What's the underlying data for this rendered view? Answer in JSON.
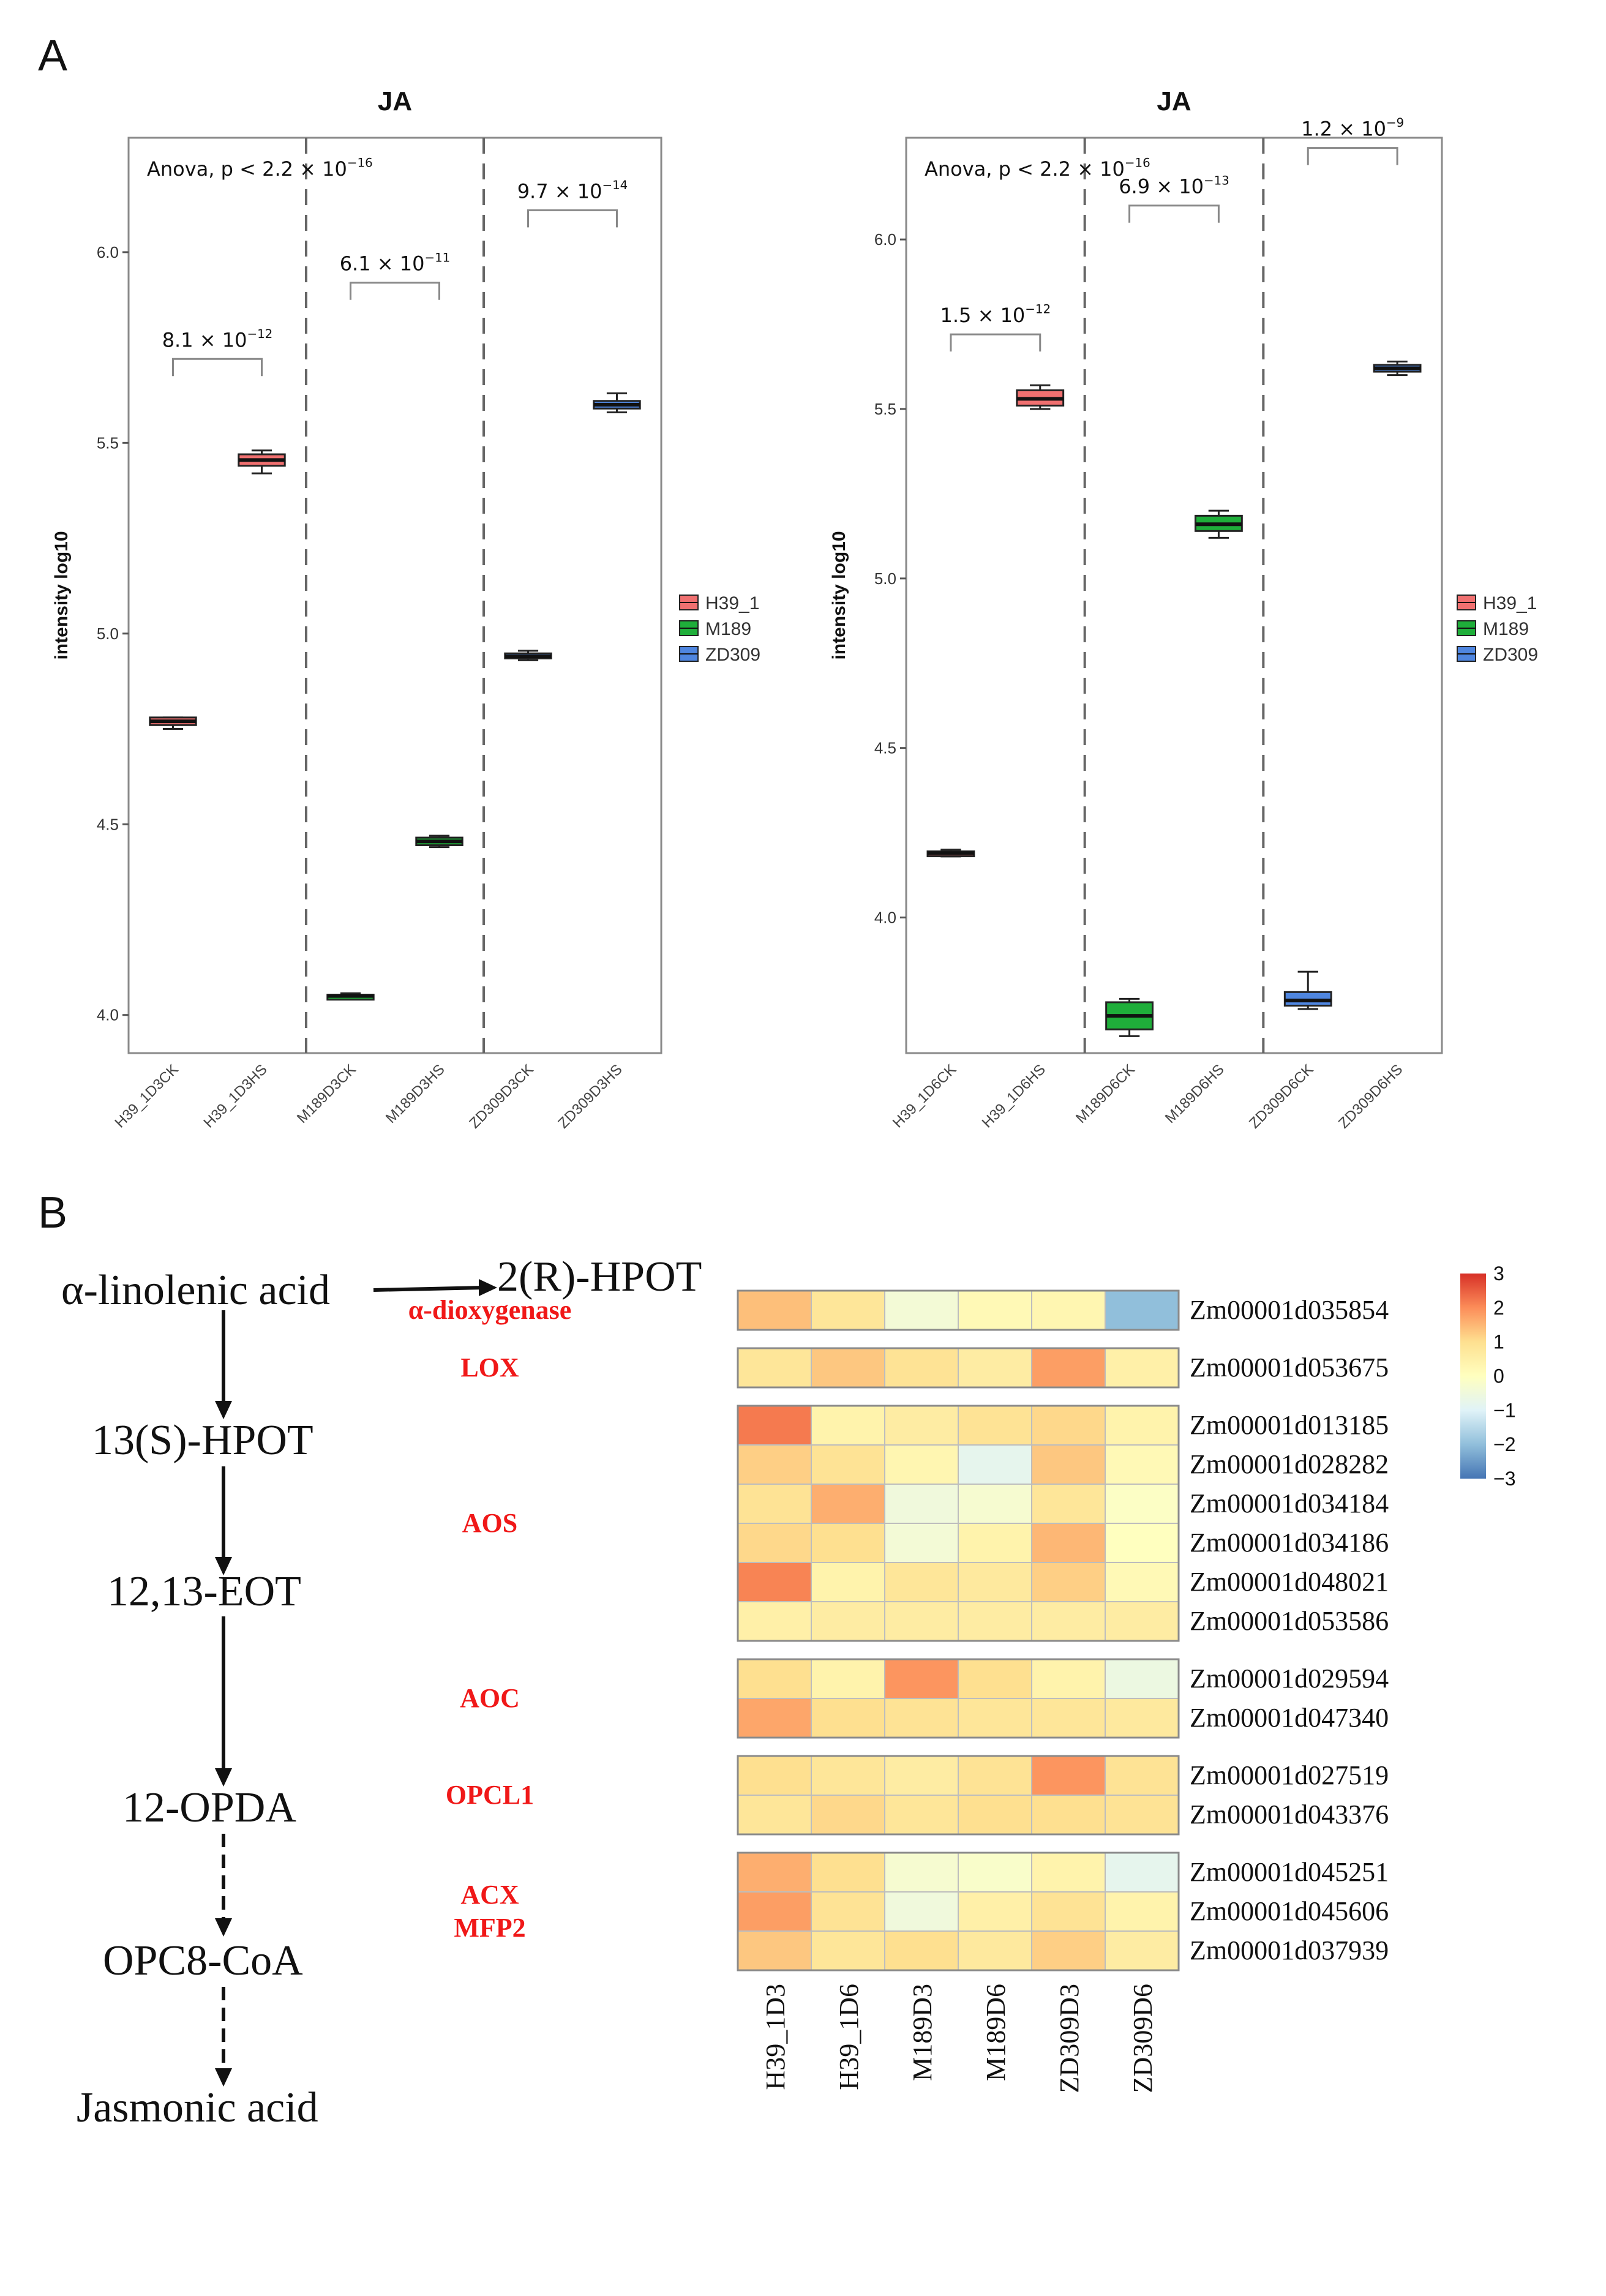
{
  "panels": {
    "a": "A",
    "b": "B"
  },
  "chart_data": [
    {
      "type": "box",
      "title": "JA",
      "ylabel": "intensity log10",
      "ylim": [
        3.9,
        6.3
      ],
      "yticks": [
        4.0,
        4.5,
        5.0,
        5.5,
        6.0
      ],
      "ytick_labels": [
        "4.0",
        "4.5",
        "5.0",
        "5.5",
        "6.0"
      ],
      "anova": {
        "lead": "Anova, p < 2.2 × 10",
        "exp": "−16"
      },
      "categories": [
        "H39_1D3CK",
        "H39_1D3HS",
        "M189D3CK",
        "M189D3HS",
        "ZD309D3CK",
        "ZD309D3HS"
      ],
      "groups": [
        "H39_1",
        "H39_1",
        "M189",
        "M189",
        "ZD309",
        "ZD309"
      ],
      "boxes": [
        {
          "min": 4.75,
          "q1": 4.76,
          "median": 4.77,
          "q3": 4.78,
          "max": 4.78
        },
        {
          "min": 5.42,
          "q1": 5.44,
          "median": 5.455,
          "q3": 5.47,
          "max": 5.48
        },
        {
          "min": 4.045,
          "q1": 4.047,
          "median": 4.05,
          "q3": 4.053,
          "max": 4.057
        },
        {
          "min": 4.44,
          "q1": 4.445,
          "median": 4.455,
          "q3": 4.465,
          "max": 4.47
        },
        {
          "min": 4.93,
          "q1": 4.935,
          "median": 4.94,
          "q3": 4.948,
          "max": 4.955
        },
        {
          "min": 5.58,
          "q1": 5.59,
          "median": 5.6,
          "q3": 5.61,
          "max": 5.63
        }
      ],
      "comparisons": [
        {
          "left": 0,
          "right": 1,
          "y": 5.72,
          "lead": "8.1 × 10",
          "exp": "−12"
        },
        {
          "left": 2,
          "right": 3,
          "y": 5.92,
          "lead": "6.1 × 10",
          "exp": "−11"
        },
        {
          "left": 4,
          "right": 5,
          "y": 6.11,
          "lead": "9.7 × 10",
          "exp": "−14"
        }
      ],
      "separators_after": [
        1,
        3
      ],
      "legend": [
        "H39_1",
        "M189",
        "ZD309"
      ]
    },
    {
      "type": "box",
      "title": "JA",
      "ylabel": "intensity log10",
      "ylim": [
        3.6,
        6.3
      ],
      "yticks": [
        4.0,
        4.5,
        5.0,
        5.5,
        6.0
      ],
      "ytick_labels": [
        "4.0",
        "4.5",
        "5.0",
        "5.5",
        "6.0"
      ],
      "anova": {
        "lead": "Anova, p < 2.2 × 10",
        "exp": "−16"
      },
      "categories": [
        "H39_1D6CK",
        "H39_1D6HS",
        "M189D6CK",
        "M189D6HS",
        "ZD309D6CK",
        "ZD309D6HS"
      ],
      "groups": [
        "H39_1",
        "H39_1",
        "M189",
        "M189",
        "ZD309",
        "ZD309"
      ],
      "boxes": [
        {
          "min": 4.18,
          "q1": 4.185,
          "median": 4.19,
          "q3": 4.195,
          "max": 4.2
        },
        {
          "min": 5.5,
          "q1": 5.51,
          "median": 5.53,
          "q3": 5.555,
          "max": 5.57
        },
        {
          "min": 3.65,
          "q1": 3.67,
          "median": 3.71,
          "q3": 3.75,
          "max": 3.76
        },
        {
          "min": 5.12,
          "q1": 5.14,
          "median": 5.16,
          "q3": 5.185,
          "max": 5.2
        },
        {
          "min": 3.73,
          "q1": 3.74,
          "median": 3.755,
          "q3": 3.78,
          "max": 3.84
        },
        {
          "min": 5.6,
          "q1": 5.61,
          "median": 5.62,
          "q3": 5.63,
          "max": 5.64
        }
      ],
      "comparisons": [
        {
          "left": 0,
          "right": 1,
          "y": 5.72,
          "lead": "1.5 × 10",
          "exp": "−12"
        },
        {
          "left": 2,
          "right": 3,
          "y": 6.1,
          "lead": "6.9 × 10",
          "exp": "−13"
        },
        {
          "left": 4,
          "right": 5,
          "y": 6.27,
          "lead": "1.2 × 10",
          "exp": "−9"
        }
      ],
      "separators_after": [
        1,
        3
      ],
      "legend": [
        "H39_1",
        "M189",
        "ZD309"
      ]
    },
    {
      "type": "heatmap",
      "columns": [
        "H39_1D3",
        "H39_1D6",
        "M189D3",
        "M189D6",
        "ZD309D3",
        "ZD309D6"
      ],
      "blocks": [
        {
          "enzyme": [
            "α-dioxygenase"
          ],
          "rows": [
            {
              "gene": "Zm00001d035854",
              "values": [
                1.4,
                0.8,
                -0.4,
                0.2,
                0.3,
                -2.0
              ]
            }
          ]
        },
        {
          "enzyme": [
            "LOX"
          ],
          "rows": [
            {
              "gene": "Zm00001d053675",
              "values": [
                0.8,
                1.3,
                0.9,
                0.6,
                1.8,
                0.5
              ]
            }
          ]
        },
        {
          "enzyme": [
            "AOS"
          ],
          "rows": [
            {
              "gene": "Zm00001d013185",
              "values": [
                2.2,
                0.4,
                0.6,
                0.9,
                1.1,
                0.4
              ]
            },
            {
              "gene": "Zm00001d028282",
              "values": [
                1.2,
                0.9,
                0.3,
                -0.8,
                1.3,
                0.2
              ]
            },
            {
              "gene": "Zm00001d034184",
              "values": [
                0.9,
                1.6,
                -0.5,
                -0.3,
                0.8,
                -0.1
              ]
            },
            {
              "gene": "Zm00001d034186",
              "values": [
                1.1,
                1.0,
                -0.4,
                0.4,
                1.5,
                0.0
              ]
            },
            {
              "gene": "Zm00001d048021",
              "values": [
                2.1,
                0.4,
                0.8,
                0.7,
                1.2,
                0.2
              ]
            },
            {
              "gene": "Zm00001d053586",
              "values": [
                0.5,
                0.6,
                0.6,
                0.6,
                0.6,
                0.6
              ]
            }
          ]
        },
        {
          "enzyme": [
            "AOC"
          ],
          "rows": [
            {
              "gene": "Zm00001d029594",
              "values": [
                1.0,
                0.4,
                1.9,
                1.0,
                0.4,
                -0.6
              ]
            },
            {
              "gene": "Zm00001d047340",
              "values": [
                1.7,
                1.0,
                0.9,
                0.8,
                0.8,
                0.7
              ]
            }
          ]
        },
        {
          "enzyme": [
            "OPCL1"
          ],
          "rows": [
            {
              "gene": "Zm00001d027519",
              "values": [
                1.0,
                0.8,
                0.6,
                0.9,
                1.9,
                0.9
              ]
            },
            {
              "gene": "Zm00001d043376",
              "values": [
                0.8,
                1.1,
                0.8,
                1.0,
                1.0,
                0.9
              ]
            }
          ]
        },
        {
          "enzyme": [
            "ACX",
            "MFP2"
          ],
          "rows": [
            {
              "gene": "Zm00001d045251",
              "values": [
                1.6,
                1.0,
                -0.3,
                -0.2,
                0.4,
                -0.8
              ]
            },
            {
              "gene": "Zm00001d045606",
              "values": [
                1.8,
                0.9,
                -0.5,
                0.5,
                0.9,
                0.4
              ]
            },
            {
              "gene": "Zm00001d037939",
              "values": [
                1.3,
                0.8,
                1.0,
                0.7,
                1.2,
                0.6
              ]
            }
          ]
        }
      ],
      "colorbar": {
        "ticks": [
          3,
          2,
          1,
          0,
          -1,
          -2,
          -3
        ],
        "tick_labels": [
          "3",
          "2",
          "1",
          "0",
          "−1",
          "−2",
          "−3"
        ]
      }
    }
  ],
  "pathway": {
    "compounds": [
      "α-linolenic acid",
      "2(R)-HPOT",
      "13(S)-HPOT",
      "12,13-EOT",
      "12-OPDA",
      "OPC8-CoA",
      "Jasmonic acid"
    ]
  },
  "colors": {
    "H39_1": "#F07070",
    "M189": "#1FAE3A",
    "ZD309": "#4F86E0",
    "enzyme_label": "#F01818",
    "heat_low": "#4575B4",
    "heat_mid": "#FFFFBF",
    "heat_high": "#D73027"
  }
}
